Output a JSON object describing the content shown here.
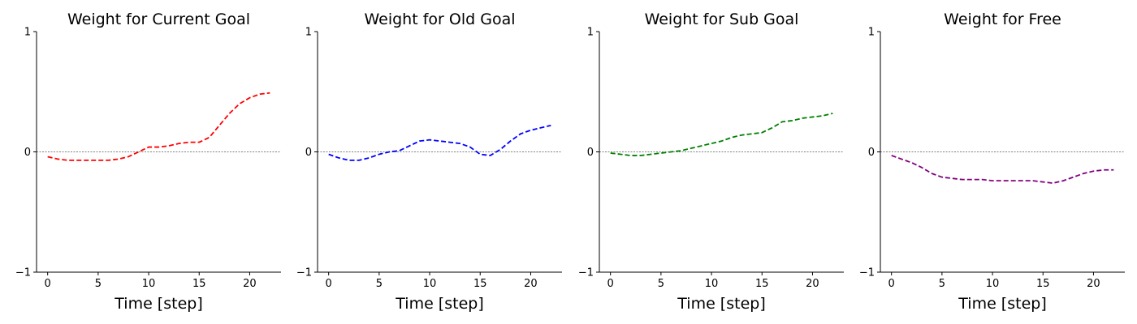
{
  "chart_data": [
    {
      "type": "line",
      "title": "Weight for Current Goal",
      "xlabel": "Time [step]",
      "ylabel": "",
      "xlim": [
        -1.1,
        23.1
      ],
      "ylim": [
        -1,
        1
      ],
      "xticks": [
        0,
        5,
        10,
        15,
        20
      ],
      "yticks": [
        -1,
        0,
        1
      ],
      "zero_line": true,
      "series": [
        {
          "color": "#ff0000",
          "x": [
            0,
            1,
            2,
            3,
            4,
            5,
            6,
            7,
            8,
            9,
            10,
            11,
            12,
            13,
            14,
            15,
            16,
            17,
            18,
            19,
            20,
            21,
            22
          ],
          "y": [
            -0.04,
            -0.06,
            -0.07,
            -0.07,
            -0.07,
            -0.07,
            -0.07,
            -0.06,
            -0.04,
            0.0,
            0.04,
            0.04,
            0.05,
            0.07,
            0.08,
            0.08,
            0.12,
            0.22,
            0.32,
            0.4,
            0.45,
            0.48,
            0.49
          ]
        }
      ]
    },
    {
      "type": "line",
      "title": "Weight for Old Goal",
      "xlabel": "Time [step]",
      "ylabel": "",
      "xlim": [
        -1.1,
        23.1
      ],
      "ylim": [
        -1,
        1
      ],
      "xticks": [
        0,
        5,
        10,
        15,
        20
      ],
      "yticks": [
        -1,
        0,
        1
      ],
      "zero_line": true,
      "series": [
        {
          "color": "#0000ff",
          "x": [
            0,
            1,
            2,
            3,
            4,
            5,
            6,
            7,
            8,
            9,
            10,
            11,
            12,
            13,
            14,
            15,
            16,
            17,
            18,
            19,
            20,
            21,
            22
          ],
          "y": [
            -0.02,
            -0.05,
            -0.07,
            -0.07,
            -0.05,
            -0.02,
            0.0,
            0.01,
            0.05,
            0.09,
            0.1,
            0.09,
            0.08,
            0.07,
            0.04,
            -0.02,
            -0.03,
            0.02,
            0.09,
            0.15,
            0.18,
            0.2,
            0.22
          ]
        }
      ]
    },
    {
      "type": "line",
      "title": "Weight for Sub Goal",
      "xlabel": "Time [step]",
      "ylabel": "",
      "xlim": [
        -1.1,
        23.1
      ],
      "ylim": [
        -1,
        1
      ],
      "xticks": [
        0,
        5,
        10,
        15,
        20
      ],
      "yticks": [
        -1,
        0,
        1
      ],
      "zero_line": true,
      "series": [
        {
          "color": "#008000",
          "x": [
            0,
            1,
            2,
            3,
            4,
            5,
            6,
            7,
            8,
            9,
            10,
            11,
            12,
            13,
            14,
            15,
            16,
            17,
            18,
            19,
            20,
            21,
            22
          ],
          "y": [
            -0.01,
            -0.02,
            -0.03,
            -0.03,
            -0.02,
            -0.01,
            0.0,
            0.01,
            0.03,
            0.05,
            0.07,
            0.09,
            0.12,
            0.14,
            0.15,
            0.16,
            0.2,
            0.25,
            0.26,
            0.28,
            0.29,
            0.3,
            0.32
          ]
        }
      ]
    },
    {
      "type": "line",
      "title": "Weight for Free",
      "xlabel": "Time [step]",
      "ylabel": "",
      "xlim": [
        -1.1,
        23.1
      ],
      "ylim": [
        -1,
        1
      ],
      "xticks": [
        0,
        5,
        10,
        15,
        20
      ],
      "yticks": [
        -1,
        0,
        1
      ],
      "zero_line": true,
      "series": [
        {
          "color": "#800080",
          "x": [
            0,
            1,
            2,
            3,
            4,
            5,
            6,
            7,
            8,
            9,
            10,
            11,
            12,
            13,
            14,
            15,
            16,
            17,
            18,
            19,
            20,
            21,
            22
          ],
          "y": [
            -0.03,
            -0.06,
            -0.09,
            -0.13,
            -0.18,
            -0.21,
            -0.22,
            -0.23,
            -0.23,
            -0.23,
            -0.24,
            -0.24,
            -0.24,
            -0.24,
            -0.24,
            -0.25,
            -0.26,
            -0.24,
            -0.21,
            -0.18,
            -0.16,
            -0.15,
            -0.15
          ]
        }
      ]
    }
  ]
}
